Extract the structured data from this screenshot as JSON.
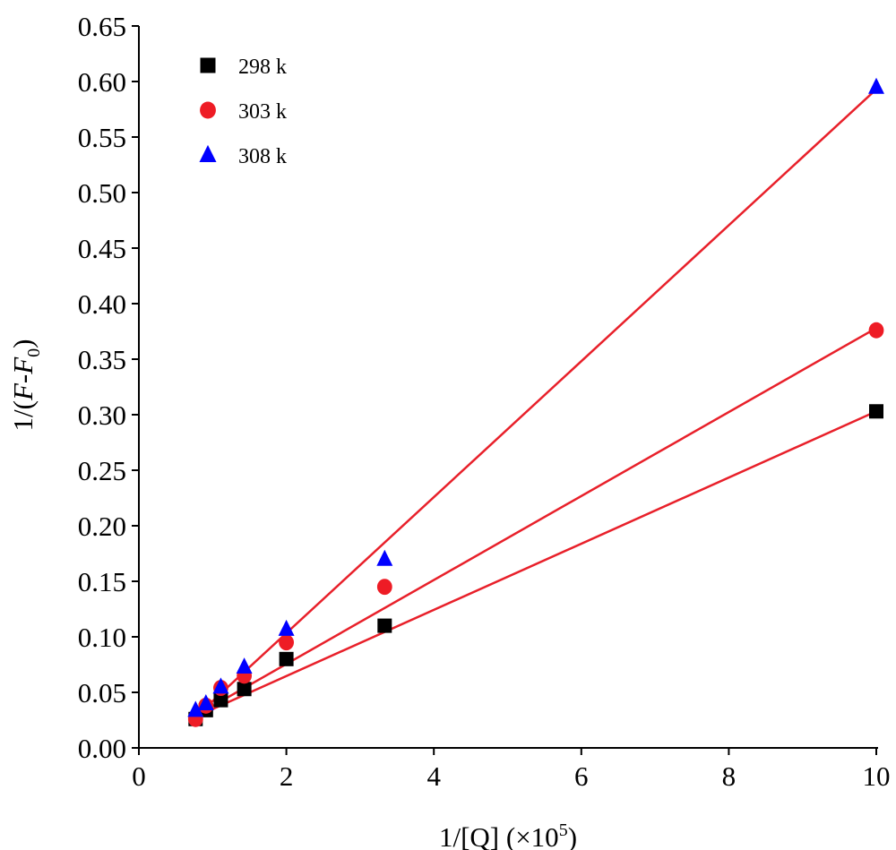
{
  "chart_data": {
    "type": "scatter",
    "xlabel": "1/[Q] (×10",
    "xlabel_sup": "5",
    "xlabel_close": ")",
    "ylabel_prefix": "1/(",
    "ylabel_F": "F",
    "ylabel_dash": "-",
    "ylabel_F0": "F",
    "ylabel_sub": "0",
    "ylabel_close": ")",
    "xlim": [
      0,
      10
    ],
    "ylim": [
      0,
      0.65
    ],
    "xticks": [
      0,
      2,
      4,
      6,
      8,
      10
    ],
    "xtick_labels": [
      "0",
      "2",
      "4",
      "6",
      "8",
      "10"
    ],
    "yticks": [
      0,
      0.05,
      0.1,
      0.15,
      0.2,
      0.25,
      0.3,
      0.35,
      0.4,
      0.45,
      0.5,
      0.55,
      0.6,
      0.65
    ],
    "ytick_labels": [
      "0.00",
      "0.05",
      "0.10",
      "0.15",
      "0.20",
      "0.25",
      "0.30",
      "0.35",
      "0.40",
      "0.45",
      "0.50",
      "0.55",
      "0.60",
      "0.65"
    ],
    "legend_position": "top-left",
    "fit_line_color": "#e8202a",
    "series": [
      {
        "name": "298 k",
        "marker": "square",
        "color": "#000000",
        "x": [
          0.769,
          0.909,
          1.111,
          1.429,
          2.0,
          3.333,
          10.0
        ],
        "y": [
          0.026,
          0.034,
          0.043,
          0.053,
          0.08,
          0.11,
          0.303
        ],
        "fit": [
          [
            0.769,
            0.028
          ],
          [
            10.0,
            0.303
          ]
        ]
      },
      {
        "name": "303 k",
        "marker": "circle",
        "color": "#ee1c25",
        "x": [
          0.769,
          0.909,
          1.111,
          1.429,
          2.0,
          3.333,
          10.0
        ],
        "y": [
          0.026,
          0.038,
          0.054,
          0.065,
          0.095,
          0.145,
          0.376
        ],
        "fit": [
          [
            0.769,
            0.029
          ],
          [
            10.0,
            0.378
          ]
        ]
      },
      {
        "name": "308 k",
        "marker": "triangle",
        "color": "#0000ff",
        "x": [
          0.769,
          0.909,
          1.111,
          1.429,
          2.0,
          3.333,
          10.0
        ],
        "y": [
          0.034,
          0.04,
          0.055,
          0.073,
          0.107,
          0.17,
          0.595
        ],
        "fit": [
          [
            0.769,
            0.028
          ],
          [
            10.0,
            0.593
          ]
        ]
      }
    ]
  }
}
